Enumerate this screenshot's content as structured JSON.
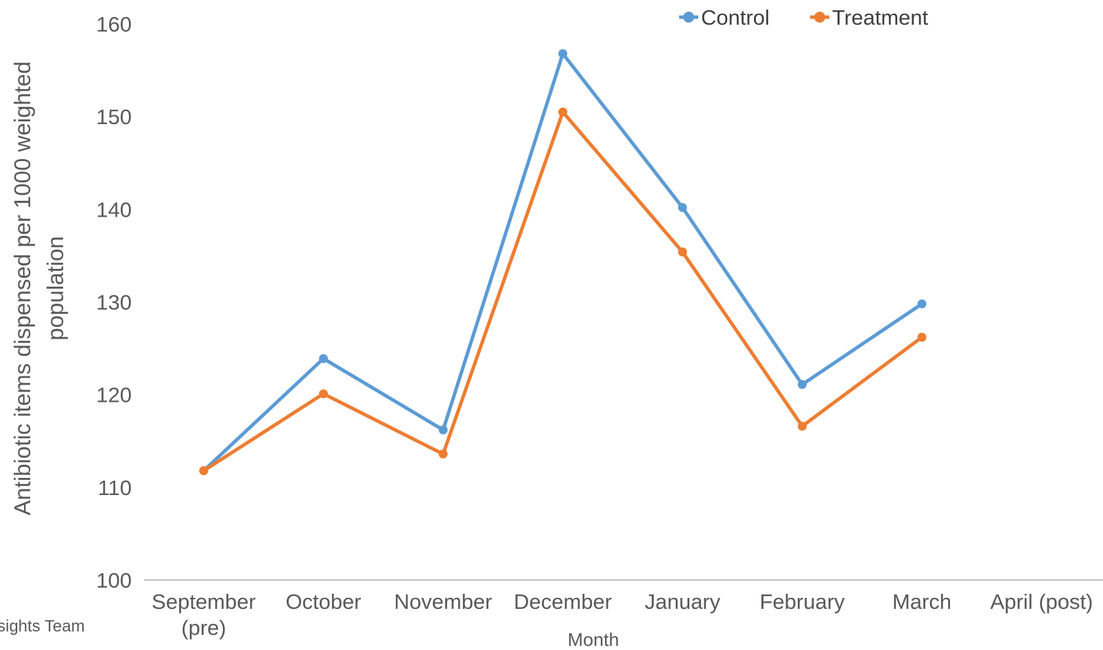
{
  "chart_data": {
    "type": "line",
    "title": "",
    "xlabel": "Month",
    "ylabel_lines": [
      "Antibiotic items dispensed per 1000 weighted",
      "population"
    ],
    "categories": [
      [
        "September",
        "(pre)"
      ],
      [
        "October"
      ],
      [
        "November"
      ],
      [
        "December"
      ],
      [
        "January"
      ],
      [
        "February"
      ],
      [
        "March"
      ],
      [
        "April (post)"
      ]
    ],
    "ylim": [
      100,
      160
    ],
    "yticks": [
      "100",
      "110",
      "120",
      "130",
      "140",
      "150",
      "160"
    ],
    "grid": false,
    "legend_position": "top-right",
    "series": [
      {
        "name": "Control",
        "color": "#5B9BD5",
        "values": [
          111.8,
          123.9,
          116.2,
          156.8,
          140.2,
          121.1,
          129.8,
          null
        ]
      },
      {
        "name": "Treatment",
        "color": "#ED7D31",
        "values": [
          111.8,
          120.1,
          113.6,
          150.5,
          135.4,
          116.6,
          126.2,
          null
        ]
      }
    ]
  },
  "footer": {
    "credit_fragment": "sights Team"
  }
}
